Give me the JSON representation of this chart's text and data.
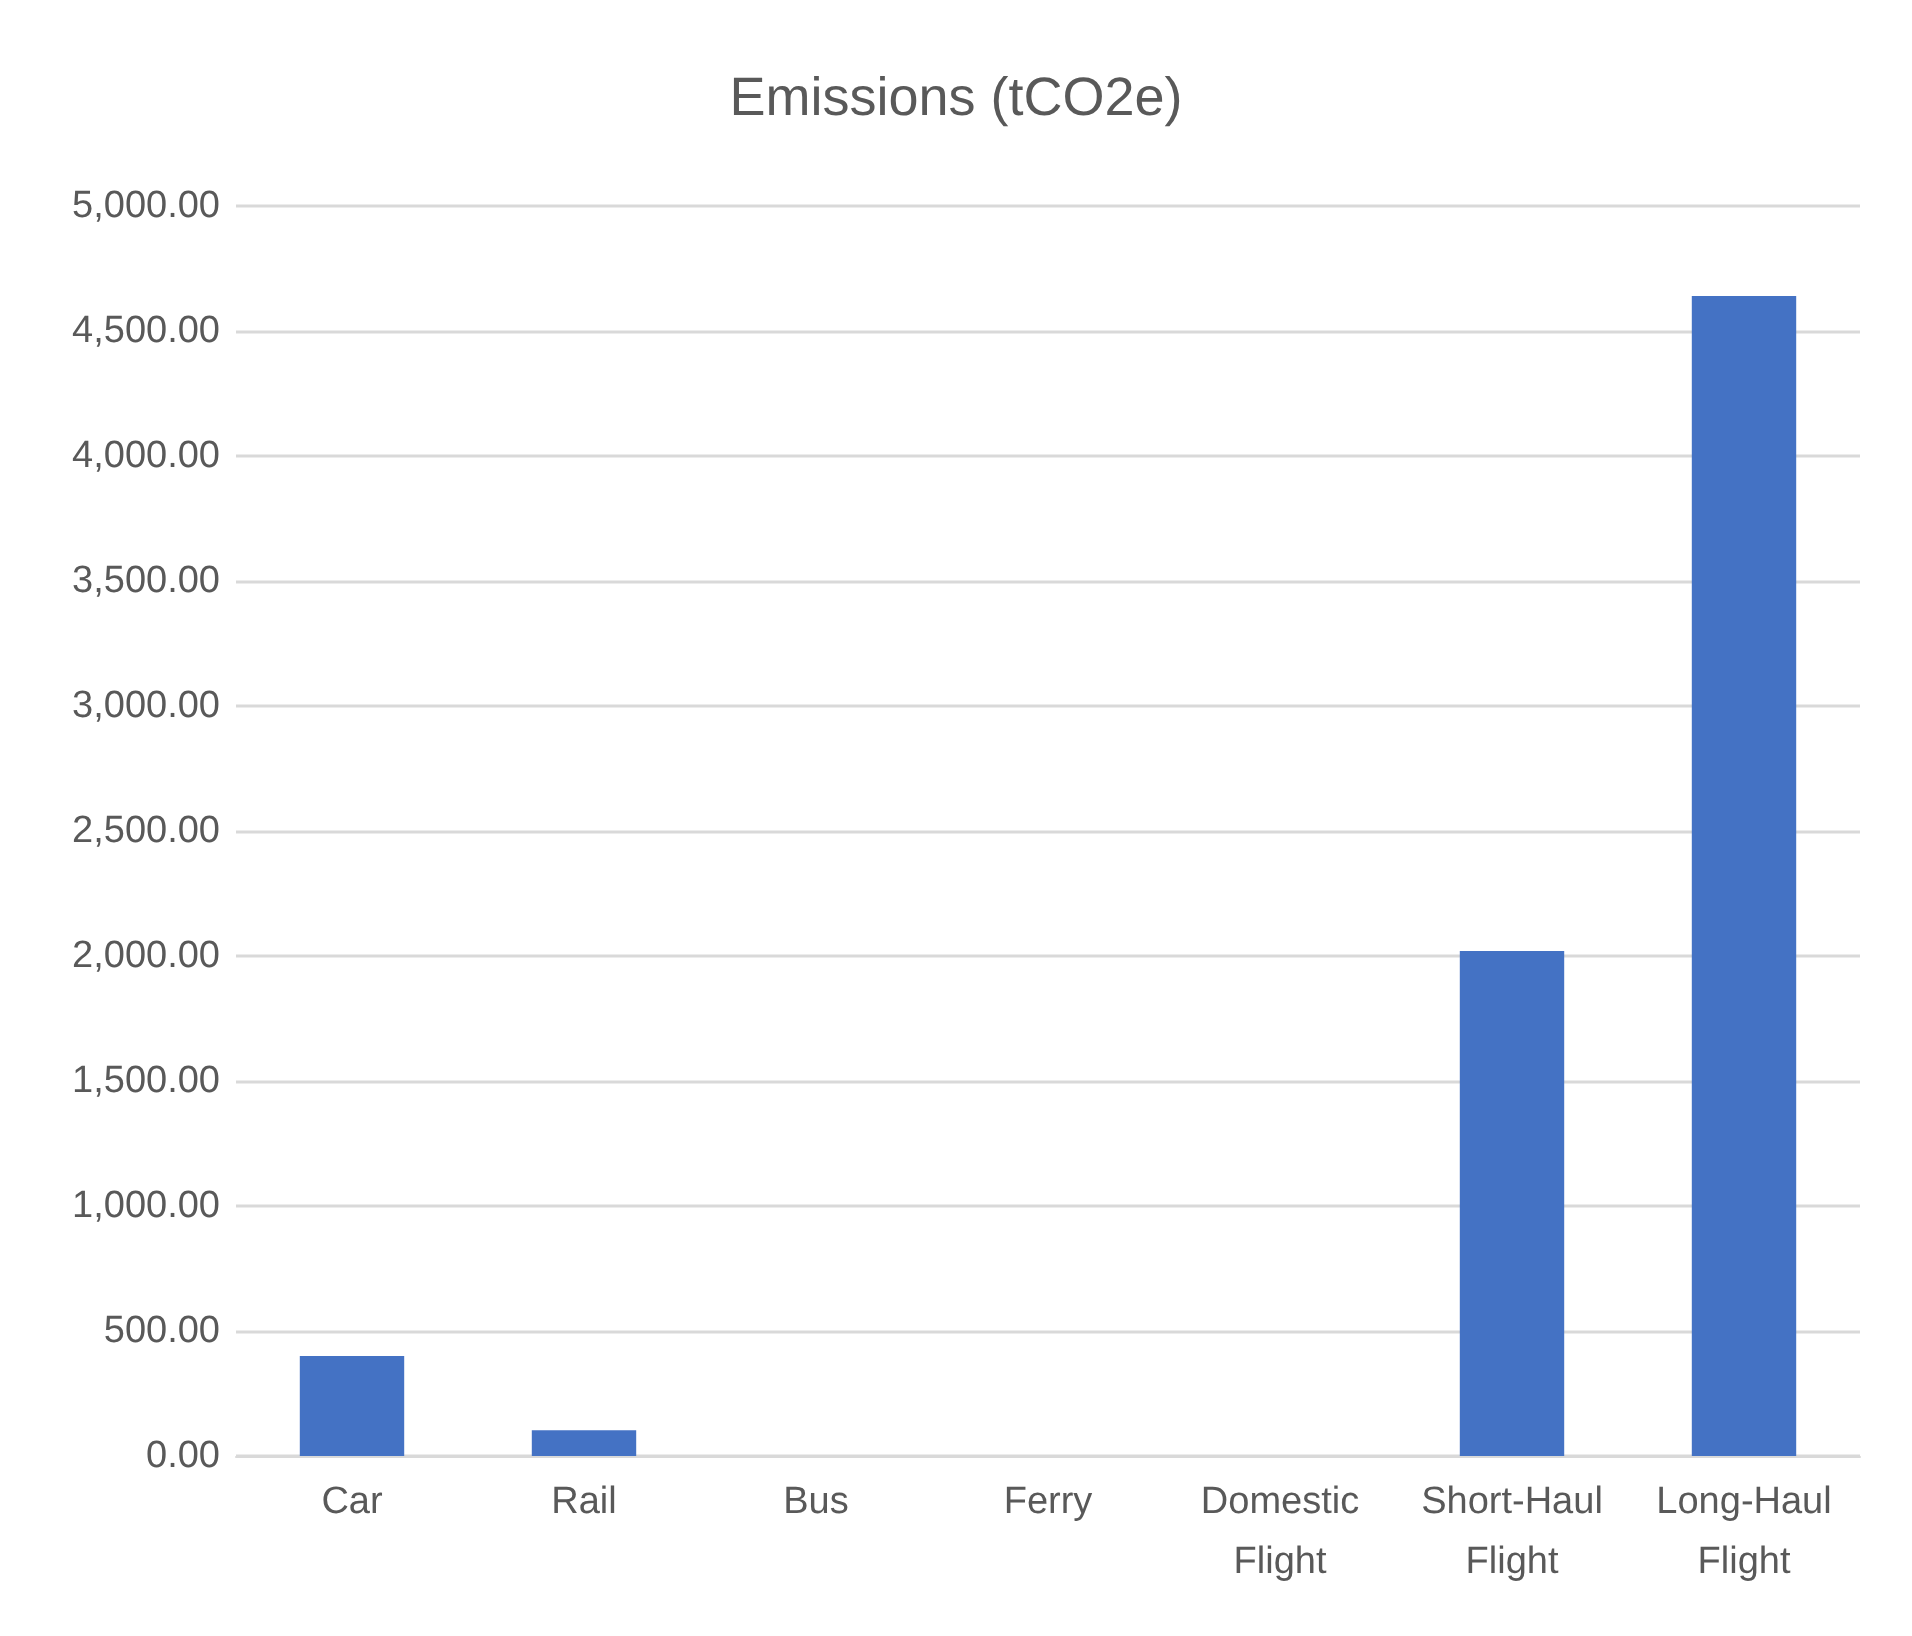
{
  "chart_data": {
    "type": "bar",
    "title": "Emissions (tCO2e)",
    "categories": [
      "Car",
      "Rail",
      "Bus",
      "Ferry",
      "Domestic Flight",
      "Short-Haul Flight",
      "Long-Haul Flight"
    ],
    "values": [
      400,
      103,
      0,
      0,
      0,
      2020,
      4640
    ],
    "color": "#4472c4",
    "ylim": [
      0,
      5000
    ],
    "yticks": [
      {
        "value": 0,
        "label": "0.00"
      },
      {
        "value": 500,
        "label": "500.00"
      },
      {
        "value": 1000,
        "label": "1,000.00"
      },
      {
        "value": 1500,
        "label": "1,500.00"
      },
      {
        "value": 2000,
        "label": "2,000.00"
      },
      {
        "value": 2500,
        "label": "2,500.00"
      },
      {
        "value": 3000,
        "label": "3,000.00"
      },
      {
        "value": 3500,
        "label": "3,500.00"
      },
      {
        "value": 4000,
        "label": "4,000.00"
      },
      {
        "value": 4500,
        "label": "4,500.00"
      },
      {
        "value": 5000,
        "label": "5,000.00"
      }
    ],
    "grid": "y"
  }
}
